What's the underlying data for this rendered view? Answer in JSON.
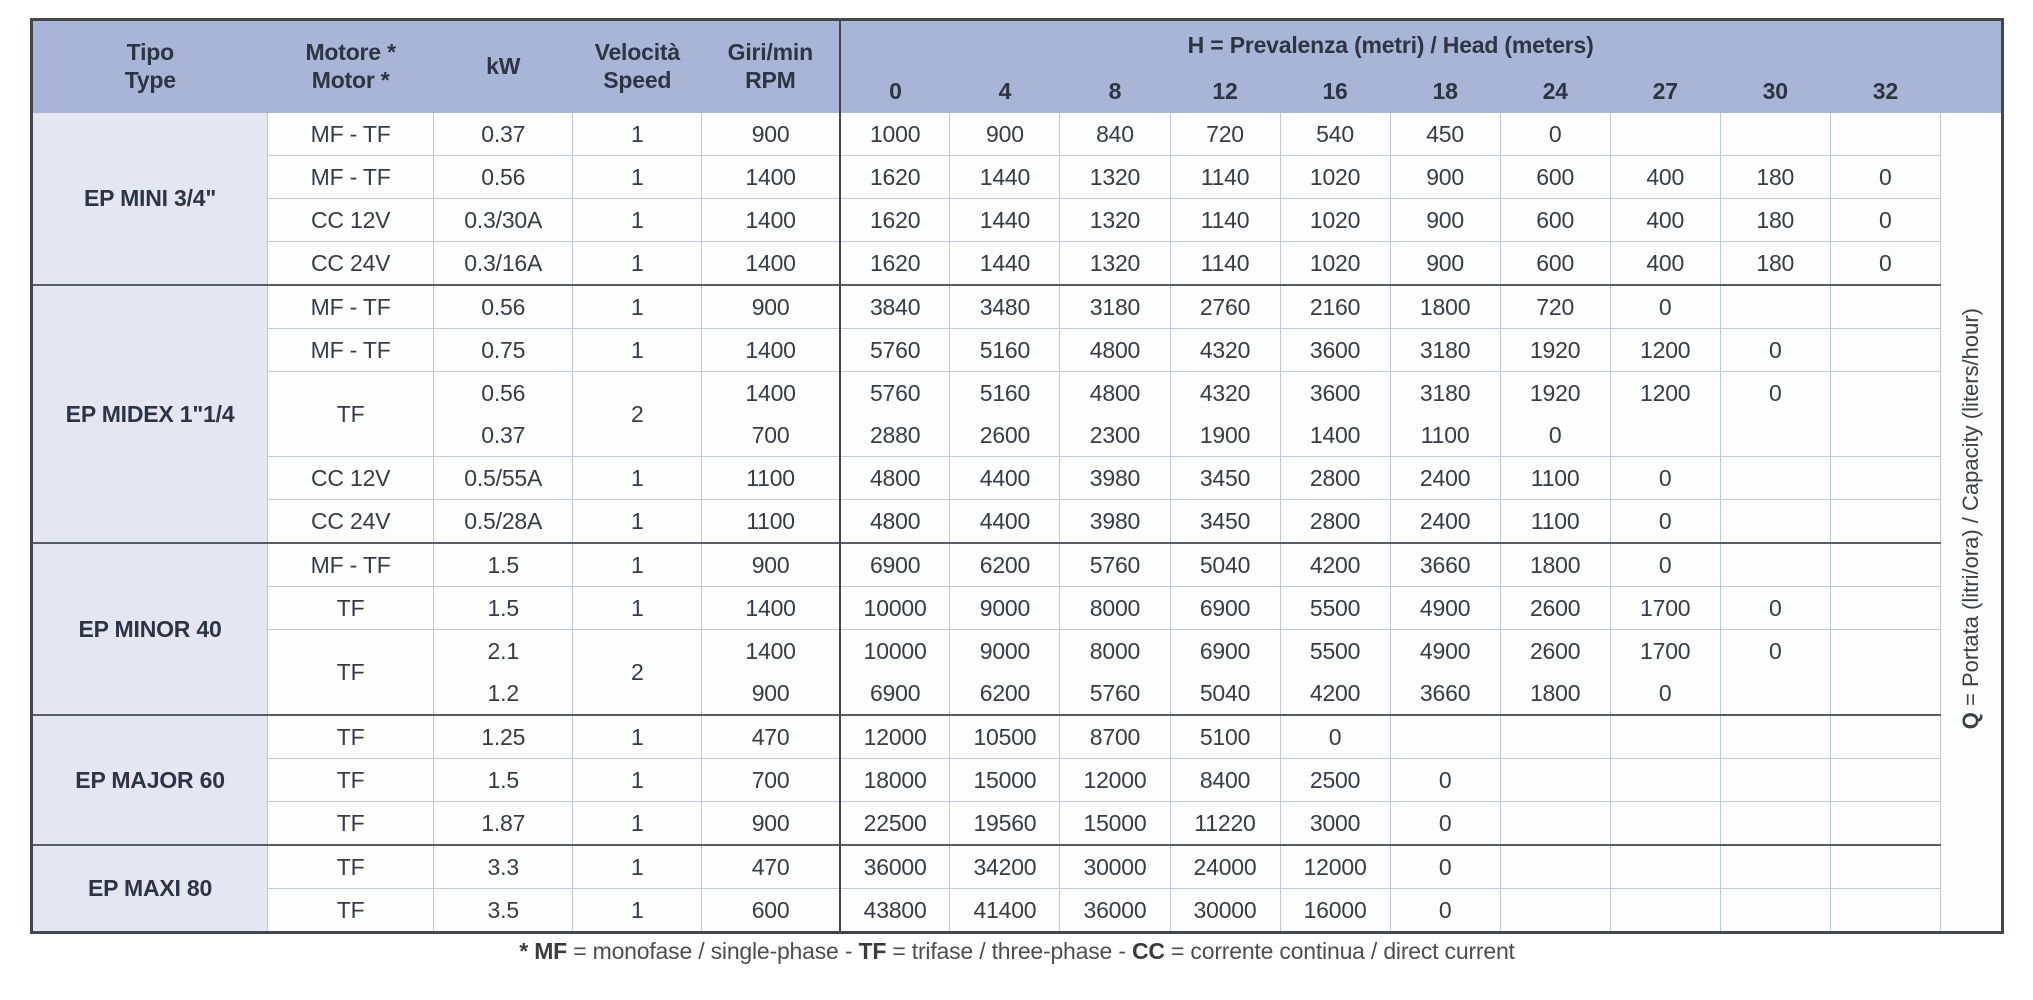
{
  "table": {
    "header": {
      "tipo": {
        "it": "Tipo",
        "en": "Type"
      },
      "motore": {
        "it": "Motore *",
        "en": "Motor *"
      },
      "kw": "kW",
      "velocita": {
        "it": "Velocità",
        "en": "Speed"
      },
      "giri": {
        "it": "Giri/min",
        "en": "RPM"
      },
      "head_label": {
        "bold": "H",
        "rest": " = Prevalenza (metri) / Head (meters)"
      },
      "h_values": [
        "0",
        "4",
        "8",
        "12",
        "16",
        "18",
        "24",
        "27",
        "30",
        "32"
      ]
    },
    "q_axis": {
      "bold": "Q",
      "rest": " = Portata (litri/ora) / Capacity (liters/hour)"
    },
    "groups": [
      {
        "name": "EP MINI 3/4\"",
        "rows": [
          {
            "motor": "MF - TF",
            "speed": "1",
            "subs": [
              {
                "kw": "0.37",
                "rpm": "900",
                "q": [
                  "1000",
                  "900",
                  "840",
                  "720",
                  "540",
                  "450",
                  "0",
                  "",
                  "",
                  ""
                ]
              }
            ]
          },
          {
            "motor": "MF - TF",
            "speed": "1",
            "subs": [
              {
                "kw": "0.56",
                "rpm": "1400",
                "q": [
                  "1620",
                  "1440",
                  "1320",
                  "1140",
                  "1020",
                  "900",
                  "600",
                  "400",
                  "180",
                  "0"
                ]
              }
            ]
          },
          {
            "motor": "CC 12V",
            "speed": "1",
            "subs": [
              {
                "kw": "0.3/30A",
                "rpm": "1400",
                "q": [
                  "1620",
                  "1440",
                  "1320",
                  "1140",
                  "1020",
                  "900",
                  "600",
                  "400",
                  "180",
                  "0"
                ]
              }
            ]
          },
          {
            "motor": "CC 24V",
            "speed": "1",
            "subs": [
              {
                "kw": "0.3/16A",
                "rpm": "1400",
                "q": [
                  "1620",
                  "1440",
                  "1320",
                  "1140",
                  "1020",
                  "900",
                  "600",
                  "400",
                  "180",
                  "0"
                ]
              }
            ]
          }
        ]
      },
      {
        "name": "EP MIDEX 1\"1/4",
        "rows": [
          {
            "motor": "MF - TF",
            "speed": "1",
            "subs": [
              {
                "kw": "0.56",
                "rpm": "900",
                "q": [
                  "3840",
                  "3480",
                  "3180",
                  "2760",
                  "2160",
                  "1800",
                  "720",
                  "0",
                  "",
                  ""
                ]
              }
            ]
          },
          {
            "motor": "MF - TF",
            "speed": "1",
            "subs": [
              {
                "kw": "0.75",
                "rpm": "1400",
                "q": [
                  "5760",
                  "5160",
                  "4800",
                  "4320",
                  "3600",
                  "3180",
                  "1920",
                  "1200",
                  "0",
                  ""
                ]
              }
            ]
          },
          {
            "motor": "TF",
            "speed": "2",
            "subs": [
              {
                "kw": "0.56",
                "rpm": "1400",
                "q": [
                  "5760",
                  "5160",
                  "4800",
                  "4320",
                  "3600",
                  "3180",
                  "1920",
                  "1200",
                  "0",
                  ""
                ]
              },
              {
                "kw": "0.37",
                "rpm": "700",
                "q": [
                  "2880",
                  "2600",
                  "2300",
                  "1900",
                  "1400",
                  "1100",
                  "0",
                  "",
                  "",
                  ""
                ]
              }
            ]
          },
          {
            "motor": "CC 12V",
            "speed": "1",
            "subs": [
              {
                "kw": "0.5/55A",
                "rpm": "1100",
                "q": [
                  "4800",
                  "4400",
                  "3980",
                  "3450",
                  "2800",
                  "2400",
                  "1100",
                  "0",
                  "",
                  ""
                ]
              }
            ]
          },
          {
            "motor": "CC 24V",
            "speed": "1",
            "subs": [
              {
                "kw": "0.5/28A",
                "rpm": "1100",
                "q": [
                  "4800",
                  "4400",
                  "3980",
                  "3450",
                  "2800",
                  "2400",
                  "1100",
                  "0",
                  "",
                  ""
                ]
              }
            ]
          }
        ]
      },
      {
        "name": "EP MINOR 40",
        "rows": [
          {
            "motor": "MF - TF",
            "speed": "1",
            "subs": [
              {
                "kw": "1.5",
                "rpm": "900",
                "q": [
                  "6900",
                  "6200",
                  "5760",
                  "5040",
                  "4200",
                  "3660",
                  "1800",
                  "0",
                  "",
                  ""
                ]
              }
            ]
          },
          {
            "motor": "TF",
            "speed": "1",
            "subs": [
              {
                "kw": "1.5",
                "rpm": "1400",
                "q": [
                  "10000",
                  "9000",
                  "8000",
                  "6900",
                  "5500",
                  "4900",
                  "2600",
                  "1700",
                  "0",
                  ""
                ]
              }
            ]
          },
          {
            "motor": "TF",
            "speed": "2",
            "subs": [
              {
                "kw": "2.1",
                "rpm": "1400",
                "q": [
                  "10000",
                  "9000",
                  "8000",
                  "6900",
                  "5500",
                  "4900",
                  "2600",
                  "1700",
                  "0",
                  ""
                ]
              },
              {
                "kw": "1.2",
                "rpm": "900",
                "q": [
                  "6900",
                  "6200",
                  "5760",
                  "5040",
                  "4200",
                  "3660",
                  "1800",
                  "0",
                  "",
                  ""
                ]
              }
            ]
          }
        ]
      },
      {
        "name": "EP MAJOR 60",
        "rows": [
          {
            "motor": "TF",
            "speed": "1",
            "subs": [
              {
                "kw": "1.25",
                "rpm": "470",
                "q": [
                  "12000",
                  "10500",
                  "8700",
                  "5100",
                  "0",
                  "",
                  "",
                  "",
                  "",
                  ""
                ]
              }
            ]
          },
          {
            "motor": "TF",
            "speed": "1",
            "subs": [
              {
                "kw": "1.5",
                "rpm": "700",
                "q": [
                  "18000",
                  "15000",
                  "12000",
                  "8400",
                  "2500",
                  "0",
                  "",
                  "",
                  "",
                  ""
                ]
              }
            ]
          },
          {
            "motor": "TF",
            "speed": "1",
            "subs": [
              {
                "kw": "1.87",
                "rpm": "900",
                "q": [
                  "22500",
                  "19560",
                  "15000",
                  "11220",
                  "3000",
                  "0",
                  "",
                  "",
                  "",
                  ""
                ]
              }
            ]
          }
        ]
      },
      {
        "name": "EP MAXI 80",
        "rows": [
          {
            "motor": "TF",
            "speed": "1",
            "subs": [
              {
                "kw": "3.3",
                "rpm": "470",
                "q": [
                  "36000",
                  "34200",
                  "30000",
                  "24000",
                  "12000",
                  "0",
                  "",
                  "",
                  "",
                  ""
                ]
              }
            ]
          },
          {
            "motor": "TF",
            "speed": "1",
            "subs": [
              {
                "kw": "3.5",
                "rpm": "600",
                "q": [
                  "43800",
                  "41400",
                  "36000",
                  "30000",
                  "16000",
                  "0",
                  "",
                  "",
                  "",
                  ""
                ]
              }
            ]
          }
        ]
      }
    ],
    "footnote": [
      {
        "bold": "* MF",
        "text": " = monofase / single-phase - "
      },
      {
        "bold": "TF",
        "text": " = trifase / three-phase - "
      },
      {
        "bold": "CC",
        "text": " = corrente continua / direct current"
      }
    ],
    "colors": {
      "header_bg": "#a8b5d7",
      "tipo_bg": "#e4e7f2",
      "grid_light": "#bfc8da",
      "grid_dark": "#585d66",
      "text": "#363c47"
    }
  }
}
